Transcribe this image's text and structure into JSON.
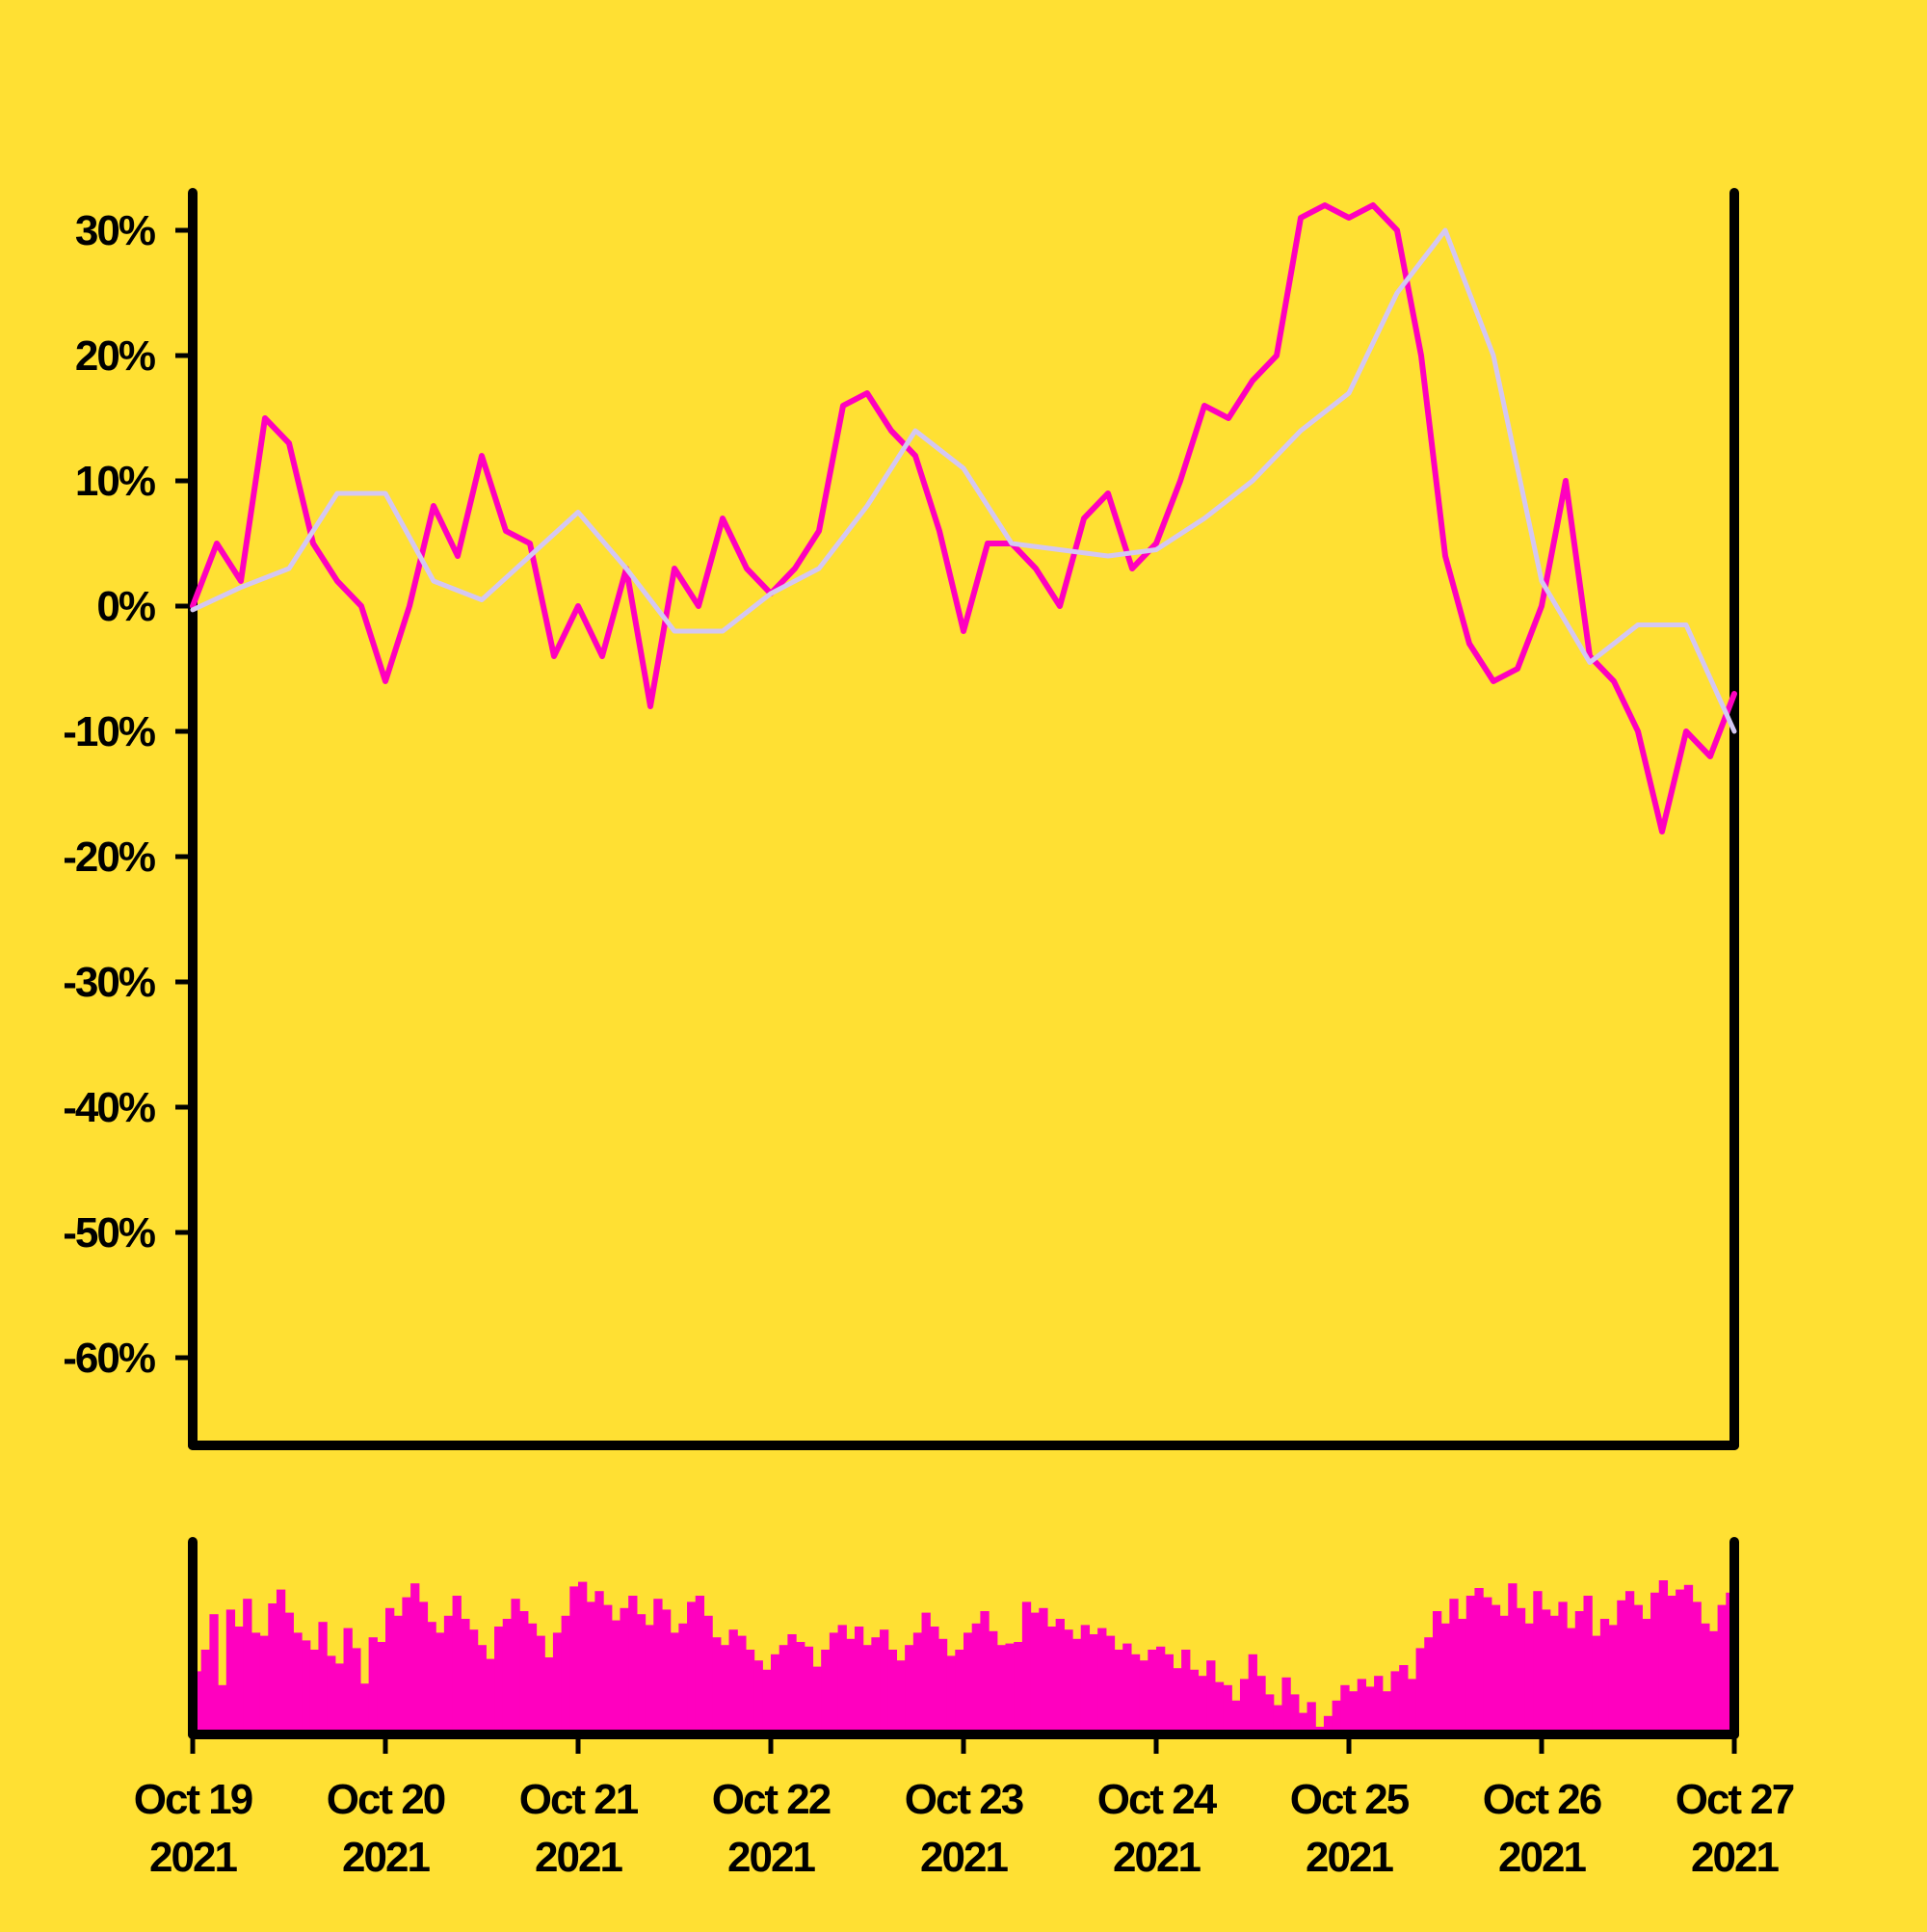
{
  "colors": {
    "background": "#FFE033",
    "price_line": "#FF00BF",
    "moving_average": "#D4C7F2",
    "volume_bars": "#FF00BF",
    "axis": "#000000"
  },
  "chart_data": [
    {
      "type": "line",
      "title": "",
      "xlabel": "",
      "ylabel": "",
      "grid": false,
      "legend": "none",
      "x_range": [
        "2021-10-19",
        "2021-10-27"
      ],
      "ylim": [
        -0.67,
        0.33
      ],
      "y_ticks": [
        0.3,
        0.2,
        0.1,
        0.0,
        -0.1,
        -0.2,
        -0.3,
        -0.4,
        -0.5,
        -0.6
      ],
      "y_tick_labels": [
        "30%",
        "20%",
        "10%",
        "0%",
        "-10%",
        "-20%",
        "-30%",
        "-40%",
        "-50%",
        "-60%"
      ],
      "x_ticks": [
        {
          "date": "2021-10-19",
          "label_line1": "Oct 19",
          "label_line2": "2021"
        },
        {
          "date": "2021-10-20",
          "label_line1": "Oct 20",
          "label_line2": "2021"
        },
        {
          "date": "2021-10-21",
          "label_line1": "Oct 21",
          "label_line2": "2021"
        },
        {
          "date": "2021-10-22",
          "label_line1": "Oct 22",
          "label_line2": "2021"
        },
        {
          "date": "2021-10-23",
          "label_line1": "Oct 23",
          "label_line2": "2021"
        },
        {
          "date": "2021-10-24",
          "label_line1": "Oct 24",
          "label_line2": "2021"
        },
        {
          "date": "2021-10-25",
          "label_line1": "Oct 25",
          "label_line2": "2021"
        },
        {
          "date": "2021-10-26",
          "label_line1": "Oct 26",
          "label_line2": "2021"
        },
        {
          "date": "2021-10-27",
          "label_line1": "Oct 27",
          "label_line2": "2021"
        }
      ],
      "series": [
        {
          "role": "price",
          "x": [
            "2021-10-19 00:00",
            "2021-10-19 03:00",
            "2021-10-19 06:00",
            "2021-10-19 09:00",
            "2021-10-19 12:00",
            "2021-10-19 15:00",
            "2021-10-19 18:00",
            "2021-10-19 21:00",
            "2021-10-20 00:00",
            "2021-10-20 03:00",
            "2021-10-20 06:00",
            "2021-10-20 09:00",
            "2021-10-20 12:00",
            "2021-10-20 15:00",
            "2021-10-20 18:00",
            "2021-10-20 21:00",
            "2021-10-21 00:00",
            "2021-10-21 03:00",
            "2021-10-21 06:00",
            "2021-10-21 09:00",
            "2021-10-21 12:00",
            "2021-10-21 15:00",
            "2021-10-21 18:00",
            "2021-10-21 21:00",
            "2021-10-22 00:00",
            "2021-10-22 03:00",
            "2021-10-22 06:00",
            "2021-10-22 09:00",
            "2021-10-22 12:00",
            "2021-10-22 15:00",
            "2021-10-22 18:00",
            "2021-10-22 21:00",
            "2021-10-23 00:00",
            "2021-10-23 03:00",
            "2021-10-23 06:00",
            "2021-10-23 09:00",
            "2021-10-23 12:00",
            "2021-10-23 15:00",
            "2021-10-23 18:00",
            "2021-10-23 21:00",
            "2021-10-24 00:00",
            "2021-10-24 03:00",
            "2021-10-24 06:00",
            "2021-10-24 09:00",
            "2021-10-24 12:00",
            "2021-10-24 15:00",
            "2021-10-24 18:00",
            "2021-10-24 21:00",
            "2021-10-25 00:00",
            "2021-10-25 03:00",
            "2021-10-25 06:00",
            "2021-10-25 09:00",
            "2021-10-25 12:00",
            "2021-10-25 15:00",
            "2021-10-25 18:00",
            "2021-10-25 21:00",
            "2021-10-26 00:00",
            "2021-10-26 03:00",
            "2021-10-26 06:00",
            "2021-10-26 09:00",
            "2021-10-26 12:00",
            "2021-10-26 15:00",
            "2021-10-26 18:00",
            "2021-10-26 21:00",
            "2021-10-27 00:00"
          ],
          "values": [
            0.0,
            0.05,
            0.02,
            0.15,
            0.13,
            0.05,
            0.02,
            0.0,
            -0.06,
            0.0,
            0.08,
            0.04,
            0.12,
            0.06,
            0.05,
            -0.04,
            0.0,
            -0.04,
            0.03,
            -0.08,
            0.03,
            0.0,
            0.07,
            0.03,
            0.01,
            0.03,
            0.06,
            0.16,
            0.17,
            0.14,
            0.12,
            0.06,
            -0.02,
            0.05,
            0.05,
            0.03,
            0.0,
            0.07,
            0.09,
            0.03,
            0.05,
            0.1,
            0.16,
            0.15,
            0.18,
            0.2,
            0.31,
            0.32,
            0.31,
            0.32,
            0.3,
            0.2,
            0.04,
            -0.03,
            -0.06,
            -0.05,
            0.0,
            0.1,
            -0.04,
            -0.06,
            -0.1,
            -0.18,
            -0.1,
            -0.12,
            -0.07
          ]
        },
        {
          "role": "moving_average",
          "x": [
            "2021-10-19 00:00",
            "2021-10-19 06:00",
            "2021-10-19 12:00",
            "2021-10-19 18:00",
            "2021-10-20 00:00",
            "2021-10-20 06:00",
            "2021-10-20 12:00",
            "2021-10-20 18:00",
            "2021-10-21 00:00",
            "2021-10-21 06:00",
            "2021-10-21 12:00",
            "2021-10-21 18:00",
            "2021-10-22 00:00",
            "2021-10-22 06:00",
            "2021-10-22 12:00",
            "2021-10-22 18:00",
            "2021-10-23 00:00",
            "2021-10-23 06:00",
            "2021-10-23 12:00",
            "2021-10-23 18:00",
            "2021-10-24 00:00",
            "2021-10-24 06:00",
            "2021-10-24 12:00",
            "2021-10-24 18:00",
            "2021-10-25 00:00",
            "2021-10-25 06:00",
            "2021-10-25 12:00",
            "2021-10-25 18:00",
            "2021-10-26 00:00",
            "2021-10-26 06:00",
            "2021-10-26 12:00",
            "2021-10-26 18:00",
            "2021-10-27 00:00"
          ],
          "values": [
            -0.003,
            0.015,
            0.03,
            0.09,
            0.09,
            0.02,
            0.005,
            0.04,
            0.075,
            0.03,
            -0.02,
            -0.02,
            0.01,
            0.03,
            0.08,
            0.14,
            0.11,
            0.05,
            0.045,
            0.04,
            0.045,
            0.07,
            0.1,
            0.14,
            0.17,
            0.25,
            0.3,
            0.2,
            0.02,
            -0.045,
            -0.015,
            -0.015,
            -0.1
          ]
        }
      ]
    },
    {
      "type": "bar",
      "title": "",
      "role": "volume",
      "x_range": [
        "2021-10-19",
        "2021-10-27"
      ],
      "values": [
        0.41,
        0.55,
        0.78,
        0.32,
        0.81,
        0.7,
        0.88,
        0.66,
        0.64,
        0.85,
        0.94,
        0.79,
        0.66,
        0.61,
        0.55,
        0.73,
        0.51,
        0.46,
        0.69,
        0.56,
        0.33,
        0.63,
        0.6,
        0.82,
        0.77,
        0.89,
        0.98,
        0.86,
        0.73,
        0.66,
        0.77,
        0.9,
        0.75,
        0.68,
        0.58,
        0.49,
        0.7,
        0.75,
        0.88,
        0.8,
        0.72,
        0.64,
        0.5,
        0.66,
        0.77,
        0.96,
        0.99,
        0.86,
        0.93,
        0.84,
        0.74,
        0.82,
        0.9,
        0.78,
        0.71,
        0.88,
        0.81,
        0.66,
        0.72,
        0.86,
        0.9,
        0.77,
        0.63,
        0.58,
        0.68,
        0.64,
        0.55,
        0.48,
        0.42,
        0.52,
        0.58,
        0.65,
        0.6,
        0.57,
        0.44,
        0.55,
        0.66,
        0.71,
        0.62,
        0.7,
        0.58,
        0.63,
        0.68,
        0.55,
        0.48,
        0.58,
        0.66,
        0.79,
        0.7,
        0.62,
        0.51,
        0.55,
        0.66,
        0.72,
        0.8,
        0.67,
        0.58,
        0.59,
        0.6,
        0.86,
        0.79,
        0.82,
        0.7,
        0.75,
        0.68,
        0.62,
        0.71,
        0.65,
        0.69,
        0.64,
        0.55,
        0.59,
        0.52,
        0.48,
        0.55,
        0.57,
        0.52,
        0.43,
        0.55,
        0.42,
        0.38,
        0.48,
        0.34,
        0.32,
        0.22,
        0.36,
        0.52,
        0.38,
        0.26,
        0.19,
        0.37,
        0.26,
        0.14,
        0.21,
        0.05,
        0.12,
        0.22,
        0.32,
        0.28,
        0.36,
        0.31,
        0.38,
        0.28,
        0.41,
        0.45,
        0.36,
        0.56,
        0.63,
        0.8,
        0.72,
        0.88,
        0.75,
        0.9,
        0.95,
        0.89,
        0.84,
        0.77,
        0.98,
        0.82,
        0.72,
        0.93,
        0.81,
        0.77,
        0.86,
        0.69,
        0.8,
        0.9,
        0.64,
        0.75,
        0.71,
        0.87,
        0.93,
        0.84,
        0.75,
        0.92,
        1.0,
        0.9,
        0.94,
        0.97,
        0.86,
        0.72,
        0.67,
        0.84,
        0.92
      ]
    }
  ]
}
